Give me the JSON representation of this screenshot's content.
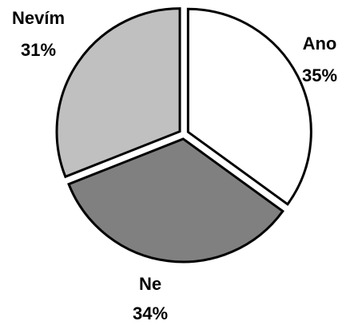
{
  "chart_data": {
    "type": "pie",
    "title": "",
    "exploded": true,
    "start_angle_deg": 0,
    "direction": "clockwise",
    "slices": [
      {
        "label": "Ano",
        "value": 35,
        "value_label": "35%",
        "color": "#ffffff"
      },
      {
        "label": "Ne",
        "value": 34,
        "value_label": "34%",
        "color": "#808080"
      },
      {
        "label": "Nevím",
        "value": 31,
        "value_label": "31%",
        "color": "#c0c0c0"
      }
    ]
  }
}
